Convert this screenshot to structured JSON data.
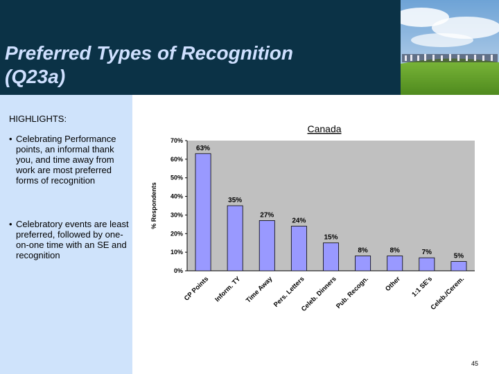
{
  "slide": {
    "title_line1": "Preferred Types of Recognition",
    "title_line2": "(Q23a)",
    "highlights_heading": "HIGHLIGHTS:",
    "bullets": [
      "Celebrating Performance points, an informal thank you, and time away from work are most preferred forms of recognition",
      "Celebratory events are least preferred, followed by one-on-one time with an SE and recognition"
    ],
    "bullet_symbol": "•",
    "page_number": "45"
  },
  "colors": {
    "header_bg": "#0b3246",
    "title_text": "#cfe0ff",
    "left_panel_bg": "#cfe3fb",
    "bar_fill": "#9999ff",
    "plot_bg": "#c0c0c0"
  },
  "chart_data": {
    "type": "bar",
    "title": "Canada",
    "ylabel": "% Respondents",
    "xlabel": "",
    "categories": [
      "CP Points",
      "Inform. TY",
      "Time Away",
      "Pers. Letters",
      "Celeb. Dinners",
      "Pub. Recogn.",
      "Other",
      "1:1 SE's",
      "Celeb./Cerem."
    ],
    "values": [
      63,
      35,
      27,
      24,
      15,
      8,
      8,
      7,
      5
    ],
    "data_labels": [
      "63%",
      "35%",
      "27%",
      "24%",
      "15%",
      "8%",
      "8%",
      "7%",
      "5%"
    ],
    "ylim": [
      0,
      70
    ],
    "yticks": [
      0,
      10,
      20,
      30,
      40,
      50,
      60,
      70
    ],
    "ytick_labels": [
      "0%",
      "10%",
      "20%",
      "30%",
      "40%",
      "50%",
      "60%",
      "70%"
    ],
    "grid": false,
    "legend": "none"
  }
}
